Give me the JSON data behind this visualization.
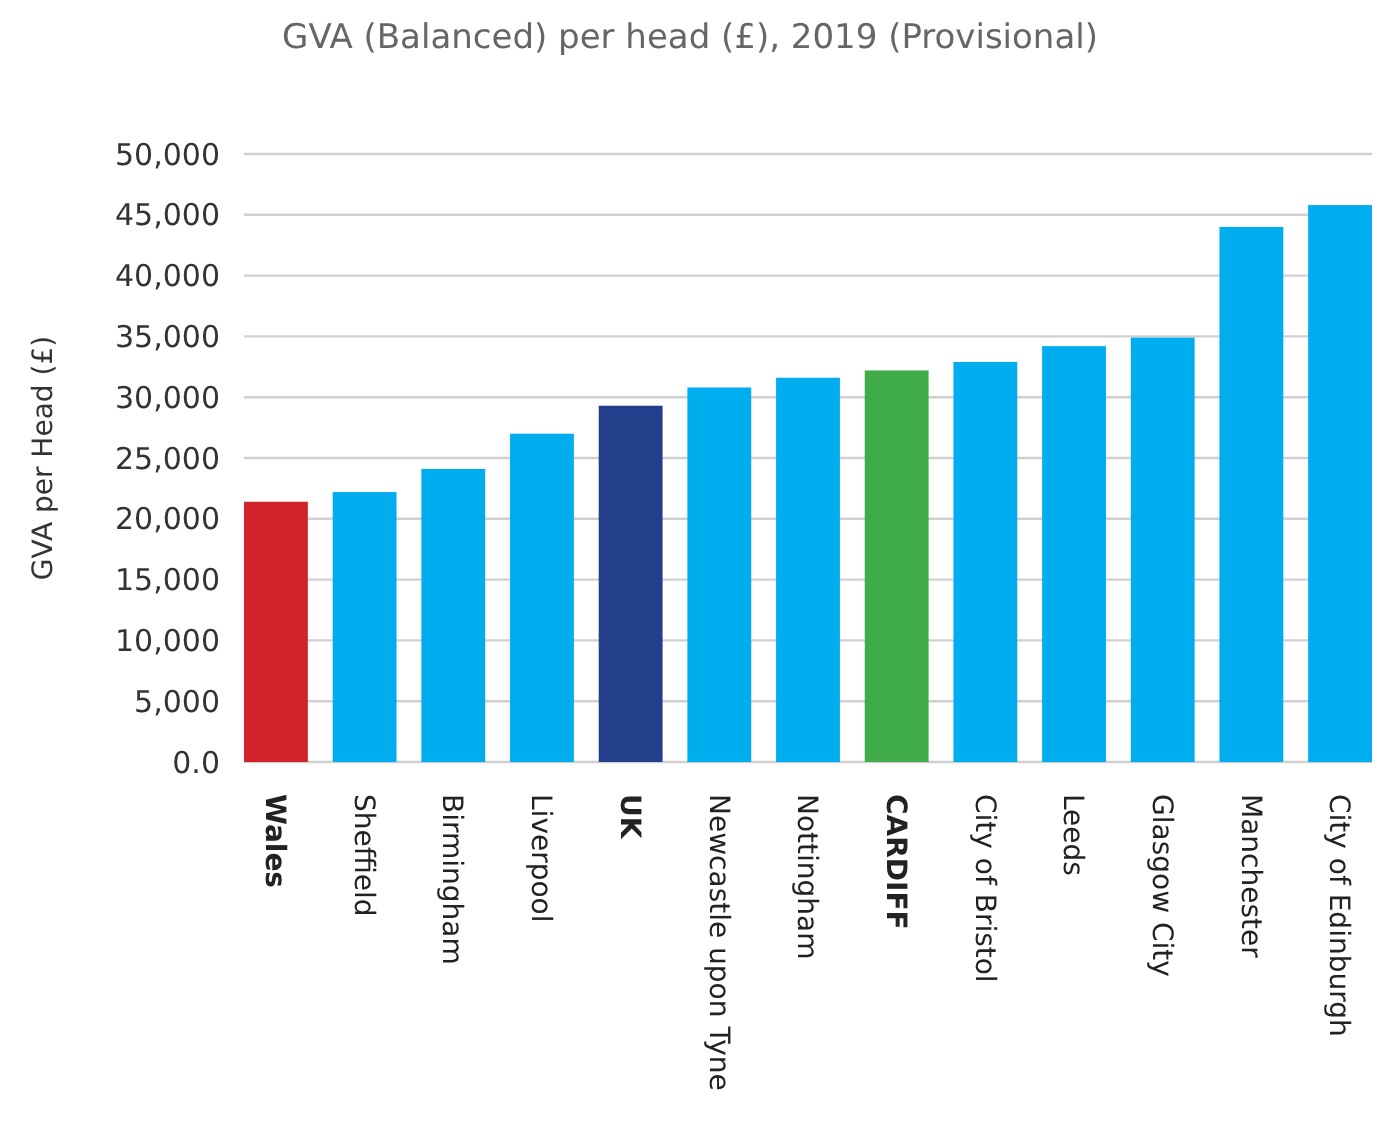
{
  "chart_data": {
    "type": "bar",
    "title": "GVA (Balanced) per head (£), 2019 (Provisional)",
    "ylabel": "GVA per Head (£)",
    "categories": [
      "Wales",
      "Sheffield",
      "Birmingham",
      "Liverpool",
      "UK",
      "Newcastle upon Tyne",
      "Nottingham",
      "CARDIFF",
      "City of Bristol",
      "Leeds",
      "Glasgow City",
      "Manchester",
      "City of Edinburgh"
    ],
    "values": [
      21400,
      22200,
      24100,
      27000,
      29300,
      30800,
      31600,
      32200,
      32900,
      34200,
      34900,
      44000,
      45800
    ],
    "colors": [
      "#d2232a",
      "#00aeef",
      "#00aeef",
      "#00aeef",
      "#233e8b",
      "#00aeef",
      "#00aeef",
      "#40ac49",
      "#00aeef",
      "#00aeef",
      "#00aeef",
      "#00aeef",
      "#00aeef"
    ],
    "ylim": [
      0,
      50000
    ],
    "yticks": [
      {
        "value": 0,
        "label": "0.0"
      },
      {
        "value": 5000,
        "label": "5,000"
      },
      {
        "value": 10000,
        "label": "10,000"
      },
      {
        "value": 15000,
        "label": "15,000"
      },
      {
        "value": 20000,
        "label": "20,000"
      },
      {
        "value": 25000,
        "label": "25,000"
      },
      {
        "value": 30000,
        "label": "30,000"
      },
      {
        "value": 35000,
        "label": "35,000"
      },
      {
        "value": 40000,
        "label": "40,000"
      },
      {
        "value": 45000,
        "label": "45,000"
      },
      {
        "value": 50000,
        "label": "50,000"
      }
    ],
    "grid": "y"
  }
}
